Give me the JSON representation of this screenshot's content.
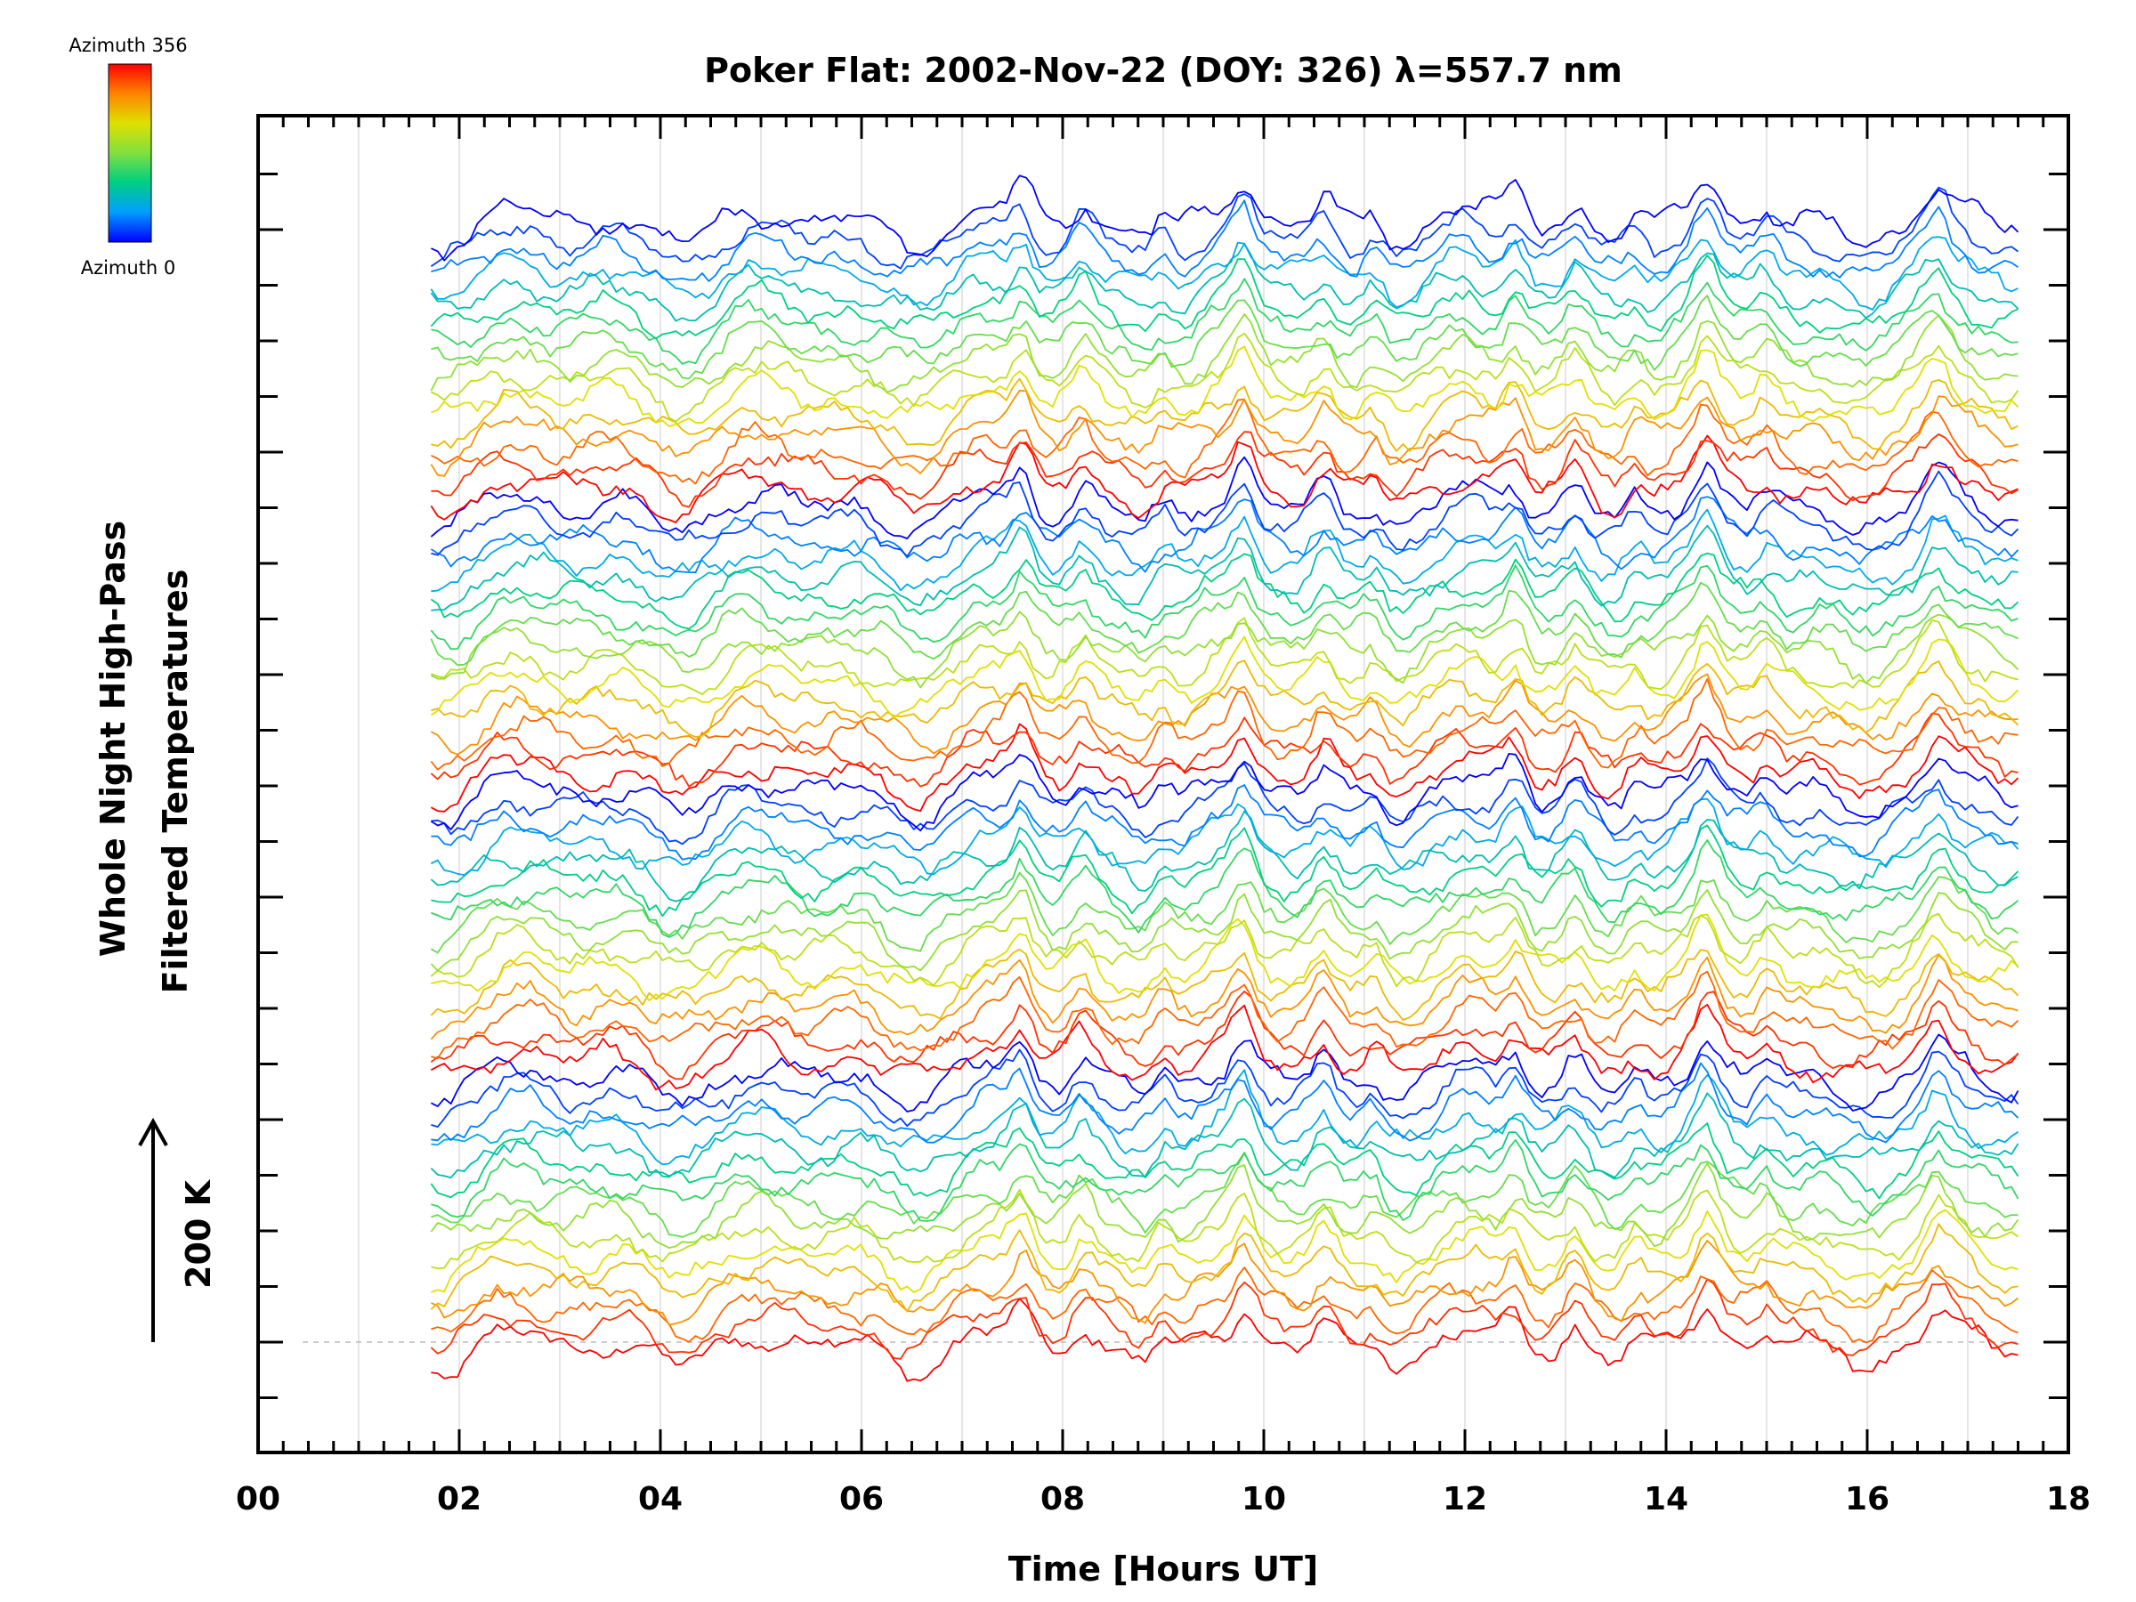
{
  "chart_data": {
    "type": "line",
    "title": "Poker Flat: 2002-Nov-22 (DOY: 326) λ=557.7 nm",
    "xlabel": "Time [Hours UT]",
    "ylabel_line1": "Whole Night High-Pass",
    "ylabel_line2": "Filtered Temperatures",
    "scale_label": "200 K",
    "xlim": [
      0,
      18
    ],
    "x_tick_labels": [
      "00",
      "02",
      "04",
      "06",
      "08",
      "10",
      "12",
      "14",
      "16",
      "18"
    ],
    "x_tick_values": [
      0,
      2,
      4,
      6,
      8,
      10,
      12,
      14,
      16,
      18
    ],
    "data_time_range": [
      1.72,
      17.5
    ],
    "series_count": 64,
    "series_offset_note": "stacked traces, one per azimuth, colored by azimuth",
    "colorbar": {
      "label_top": "Azimuth 356",
      "label_bottom": "Azimuth 0",
      "min": 0,
      "max": 356,
      "colors": [
        "#0000ff",
        "#00a0ff",
        "#00d080",
        "#80e040",
        "#e0e000",
        "#ff8000",
        "#ff0000"
      ]
    },
    "common_features_hours": [
      7.6,
      8.2,
      9.0,
      9.8,
      10.6,
      11.1,
      12.5,
      13.1,
      13.7,
      14.4,
      15.0,
      16.7
    ]
  }
}
